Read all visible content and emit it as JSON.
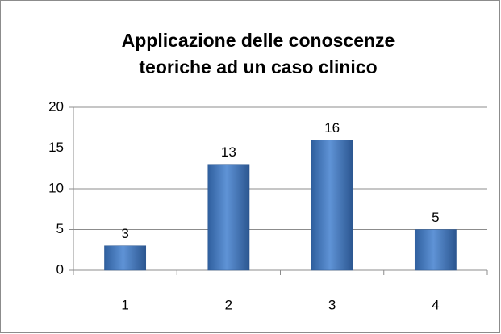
{
  "chart_data": {
    "type": "bar",
    "title": [
      "Applicazione delle conoscenze",
      "teoriche ad un caso clinico"
    ],
    "categories": [
      "1",
      "2",
      "3",
      "4"
    ],
    "values": [
      3,
      13,
      16,
      5
    ],
    "color": "#4f81bd",
    "ylim": [
      0,
      20
    ],
    "yticks": [
      0,
      5,
      10,
      15,
      20
    ],
    "grid": true,
    "data_labels": true
  }
}
